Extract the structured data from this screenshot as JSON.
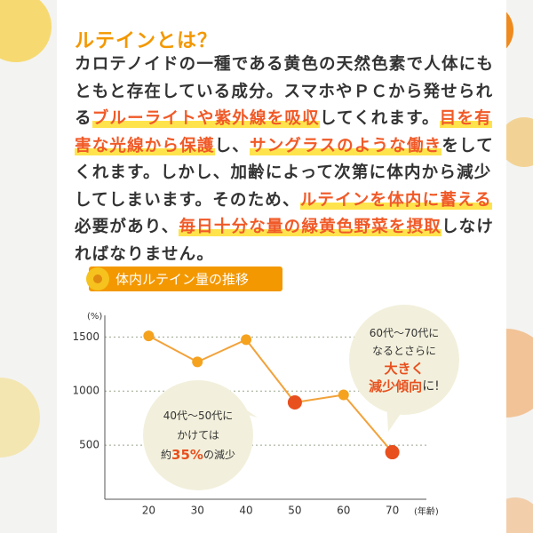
{
  "title": "ルテインとは？",
  "paragraph": [
    "カロテノイドの一種である黄色の天然色素で人体にもともと存在している成分。スマホやＰＣから発せられる",
    {
      "text": "ブルーライトや紫外線を吸収"
    },
    "してくれます。",
    {
      "text": "目を有害な光線から保護"
    },
    "し、",
    {
      "text": "サングラスのような働き"
    },
    "をしてくれます。しかし、加齢によって次第に体内から減少してしまいます。そのため、",
    {
      "text": "ルテインを体内に蓄える"
    },
    "必要があり、",
    {
      "text": "毎日十分な量の緑黄色野菜を摂取"
    },
    "しなければなりません。"
  ],
  "highlight_color": "#f05a28",
  "chart_data": {
    "type": "line",
    "title": "体内ルテイン量の推移",
    "y_unit": "(%)",
    "x_unit": "(年齢)",
    "x": [
      20,
      30,
      40,
      50,
      60,
      70
    ],
    "values": [
      1510,
      1270,
      1475,
      895,
      965,
      435
    ],
    "color": "#f2a23a",
    "marker_colors": [
      "#f5a21f",
      "#f5a21f",
      "#f5a21f",
      "#e8501e",
      "#f5a21f",
      "#e8501e"
    ],
    "xlim": [
      11,
      77
    ],
    "xticks": [
      20,
      30,
      40,
      50,
      60,
      70
    ],
    "ylim": [
      0,
      1700
    ],
    "yticks": [
      500,
      1000,
      1500
    ],
    "grid": true,
    "annotations": [
      {
        "lines": [
          [
            "40代～50代に"
          ],
          [
            "かけては"
          ],
          [
            "約",
            {
              "text": "35%",
              "color": "#e8501e"
            },
            "の減少"
          ]
        ]
      },
      {
        "lines": [
          [
            "60代～70代に"
          ],
          [
            "なるとさらに"
          ],
          [
            {
              "text": "大きく",
              "color": "#e8501e"
            }
          ],
          [
            {
              "text": "減少傾向",
              "color": "#e8501e"
            },
            "に!"
          ]
        ]
      }
    ]
  }
}
